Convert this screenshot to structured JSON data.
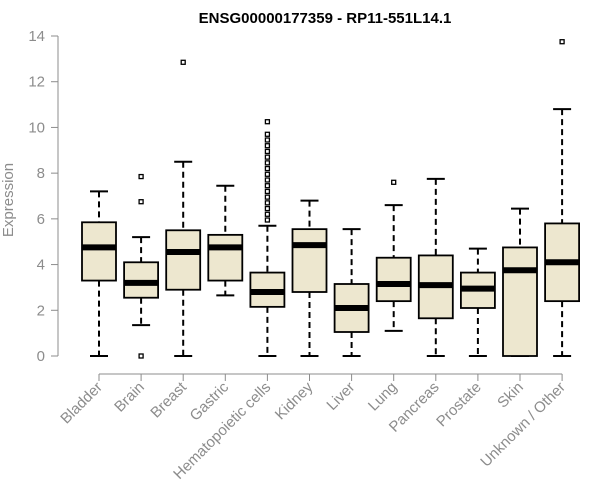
{
  "chart_data": {
    "type": "boxplot",
    "title": "ENSG00000177359 - RP11-551L14.1",
    "ylabel": "Expression",
    "xlabel": "",
    "ylim": [
      0,
      14
    ],
    "yticks": [
      0,
      2,
      4,
      6,
      8,
      10,
      12,
      14
    ],
    "grid": false,
    "colors": {
      "box_fill": "#ede7cf",
      "stroke": "#000000",
      "axis": "#8c8c8c"
    },
    "categories": [
      "Bladder",
      "Brain",
      "Breast",
      "Gastric",
      "Hematopoietic cells",
      "Kidney",
      "Liver",
      "Lung",
      "Pancreas",
      "Prostate",
      "Skin",
      "Unknown / Other"
    ],
    "boxes": [
      {
        "min": 0,
        "q1": 3.3,
        "median": 4.75,
        "q3": 5.85,
        "max": 7.2,
        "outliers": []
      },
      {
        "min": 1.35,
        "q1": 2.55,
        "median": 3.2,
        "q3": 4.1,
        "max": 5.2,
        "outliers": [
          7.85,
          6.75,
          0
        ]
      },
      {
        "min": 0,
        "q1": 2.9,
        "median": 4.55,
        "q3": 5.5,
        "max": 8.5,
        "outliers": [
          12.85
        ]
      },
      {
        "min": 2.65,
        "q1": 3.3,
        "median": 4.75,
        "q3": 5.3,
        "max": 7.45,
        "outliers": []
      },
      {
        "min": 0,
        "q1": 2.15,
        "median": 2.8,
        "q3": 3.65,
        "max": 5.7,
        "outliers": [
          5.95,
          6.2,
          6.45,
          6.7,
          6.95,
          7.2,
          7.45,
          7.7,
          7.95,
          8.2,
          8.45,
          8.7,
          8.95,
          9.2,
          9.45,
          9.7,
          10.25
        ]
      },
      {
        "min": 0,
        "q1": 2.8,
        "median": 4.85,
        "q3": 5.55,
        "max": 6.8,
        "outliers": []
      },
      {
        "min": 0,
        "q1": 1.05,
        "median": 2.1,
        "q3": 3.15,
        "max": 5.55,
        "outliers": []
      },
      {
        "min": 1.1,
        "q1": 2.4,
        "median": 3.15,
        "q3": 4.3,
        "max": 6.6,
        "outliers": [
          7.6
        ]
      },
      {
        "min": 0,
        "q1": 1.65,
        "median": 3.1,
        "q3": 4.4,
        "max": 7.75,
        "outliers": []
      },
      {
        "min": 0,
        "q1": 2.1,
        "median": 2.95,
        "q3": 3.65,
        "max": 4.7,
        "outliers": []
      },
      {
        "min": 0,
        "q1": 0,
        "median": 3.75,
        "q3": 4.75,
        "max": 6.45,
        "outliers": []
      },
      {
        "min": 0,
        "q1": 2.4,
        "median": 4.1,
        "q3": 5.8,
        "max": 10.8,
        "outliers": [
          13.75
        ]
      }
    ]
  }
}
